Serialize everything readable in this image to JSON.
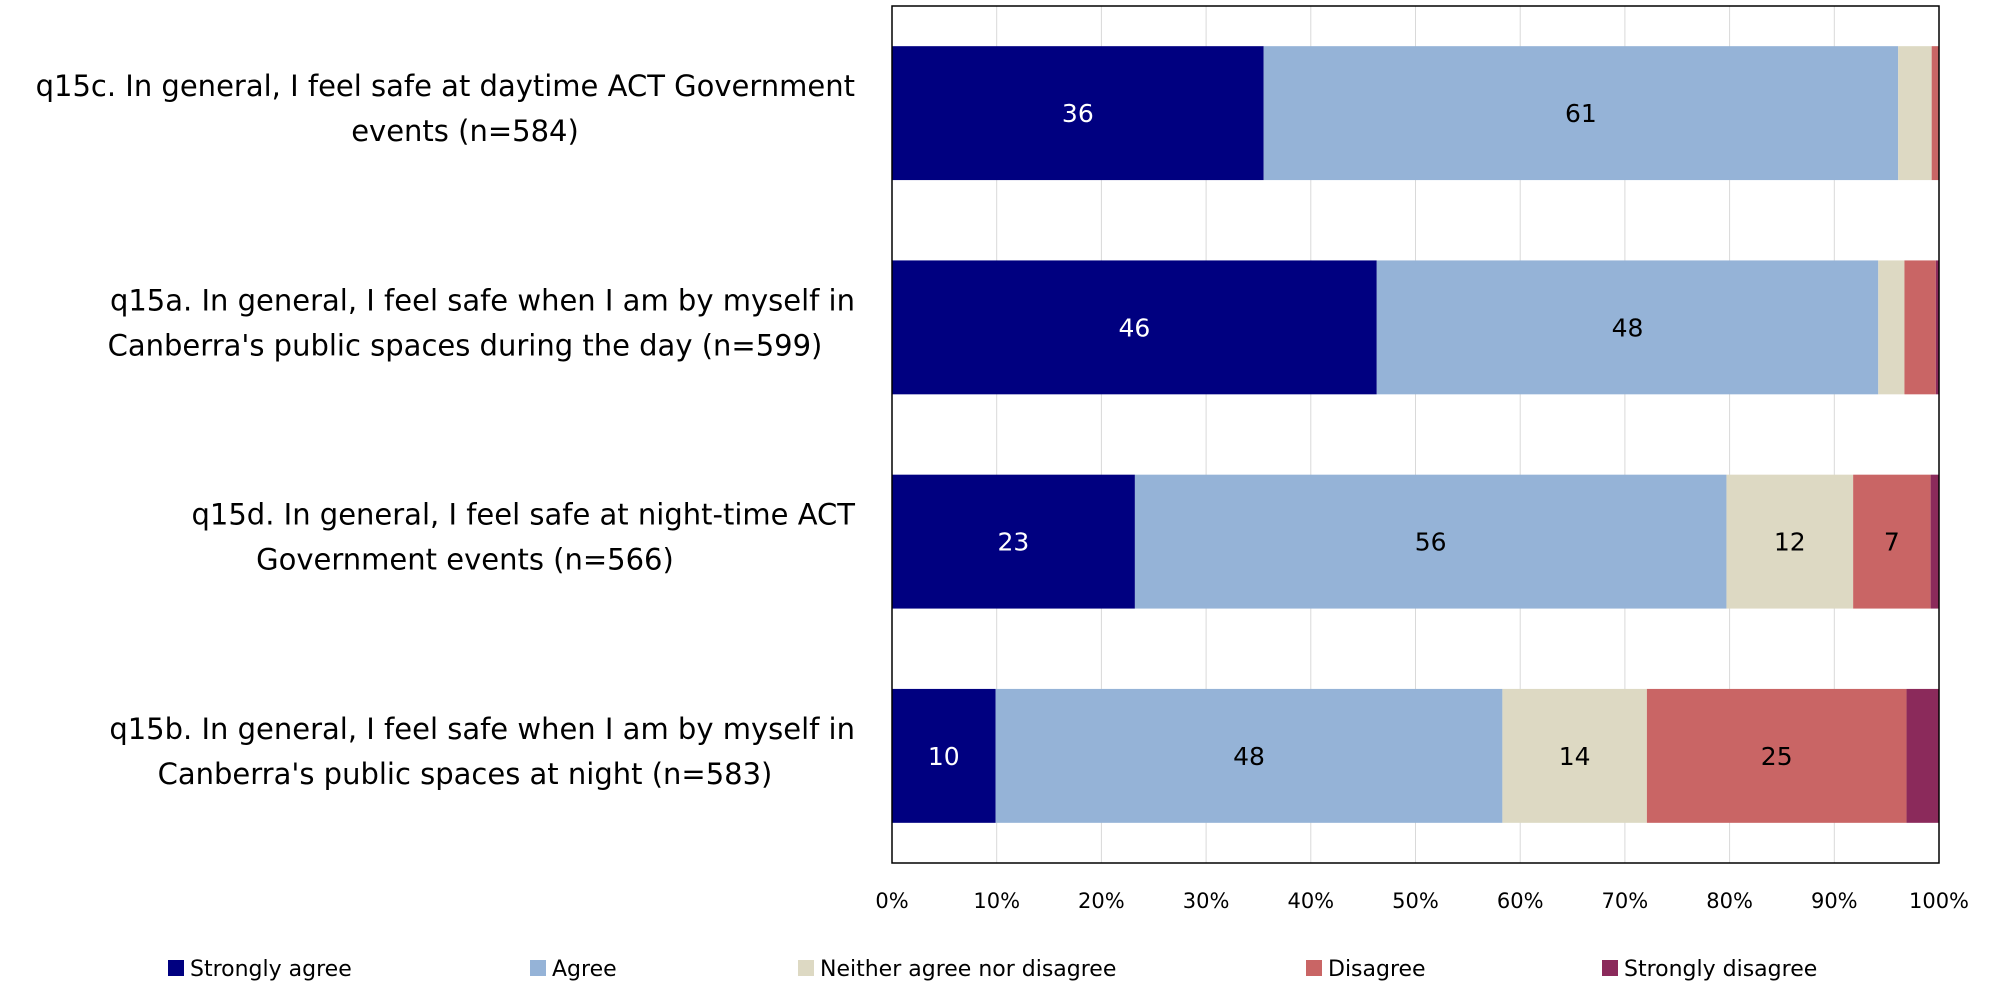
{
  "chart_data": {
    "type": "bar",
    "orientation": "horizontal",
    "stacked": true,
    "categories": [
      [
        "q15c. In general, I feel safe at daytime ACT Government",
        "events (n=584)"
      ],
      [
        "q15a. In general, I feel safe when I am by myself in",
        "Canberra's public spaces during the day (n=599)"
      ],
      [
        "q15d. In general, I feel safe at night-time ACT",
        "Government events (n=566)"
      ],
      [
        "q15b. In general, I feel safe when I am by myself in",
        "Canberra's public spaces at night (n=583)"
      ]
    ],
    "series": [
      {
        "name": "Strongly agree",
        "color": "#000080",
        "label_color": "#ffffff",
        "values": [
          35.5,
          46.3,
          23.2,
          9.9
        ],
        "labels": [
          "36",
          "46",
          "23",
          "10"
        ]
      },
      {
        "name": "Agree",
        "color": "#95b3d7",
        "label_color": "#000000",
        "values": [
          60.6,
          47.9,
          56.5,
          48.4
        ],
        "labels": [
          "61",
          "48",
          "56",
          "48"
        ]
      },
      {
        "name": "Neither agree nor disagree",
        "color": "#ddd9c3",
        "label_color": "#000000",
        "values": [
          3.2,
          2.5,
          12.1,
          13.8
        ],
        "labels": [
          "",
          "",
          "12",
          "14"
        ]
      },
      {
        "name": "Disagree",
        "color": "#c96565",
        "label_color": "#000000",
        "values": [
          0.7,
          3.0,
          7.4,
          24.8
        ],
        "labels": [
          "",
          "",
          "7",
          "25"
        ]
      },
      {
        "name": "Strongly disagree",
        "color": "#8b2a5b",
        "label_color": "#ffffff",
        "values": [
          0.0,
          0.3,
          0.8,
          3.1
        ],
        "labels": [
          "",
          "",
          "",
          ""
        ]
      }
    ],
    "x_ticks": [
      "0%",
      "10%",
      "20%",
      "30%",
      "40%",
      "50%",
      "60%",
      "70%",
      "80%",
      "90%",
      "100%"
    ],
    "xlim": [
      0,
      100
    ],
    "grid": true,
    "legend_position": "bottom"
  }
}
